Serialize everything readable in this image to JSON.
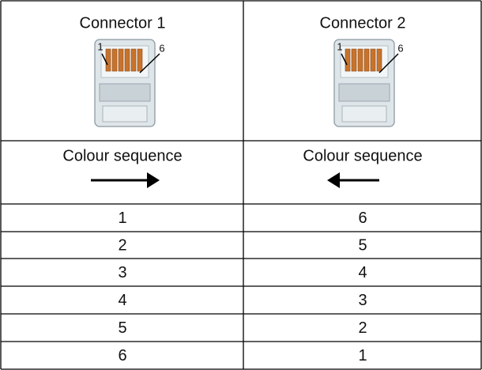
{
  "header": [
    {
      "title": "Connector 1",
      "pin_labels": [
        "1",
        "6"
      ],
      "sequence_label": "Colour sequence"
    },
    {
      "title": "Connector 2",
      "pin_labels": [
        "1",
        "6"
      ],
      "sequence_label": "Colour sequence"
    }
  ],
  "table": {
    "rows": [
      [
        "1",
        "6"
      ],
      [
        "2",
        "5"
      ],
      [
        "3",
        "4"
      ],
      [
        "4",
        "3"
      ],
      [
        "5",
        "2"
      ],
      [
        "6",
        "1"
      ]
    ]
  }
}
